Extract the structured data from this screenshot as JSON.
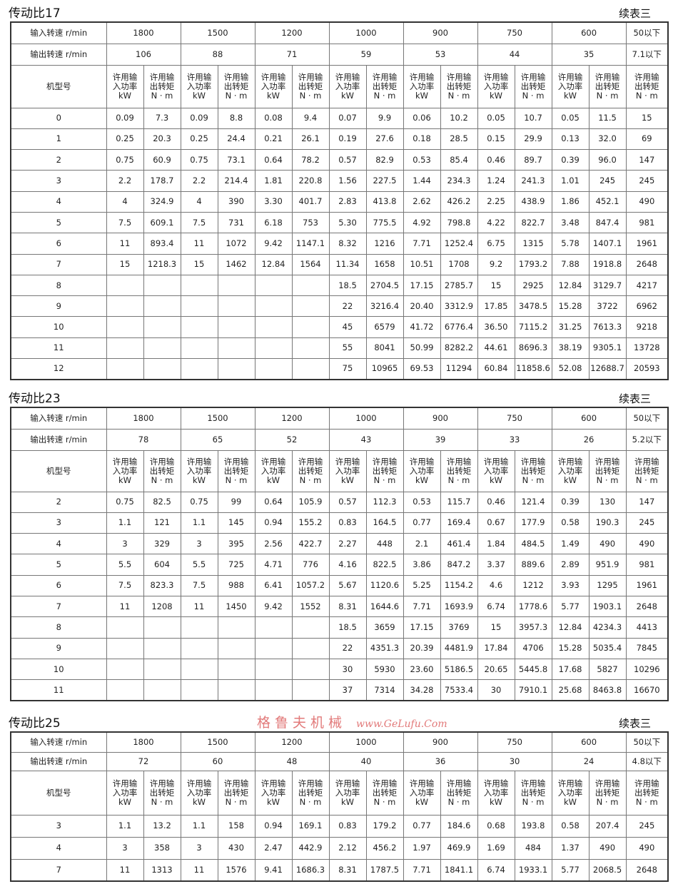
{
  "labels": {
    "input_speed": "输入转速 r/min",
    "output_speed": "输出转速 r/min",
    "model": "机型号",
    "power_header": [
      "许用输",
      "入功率",
      "kW"
    ],
    "torque_header": [
      "许用输",
      "出转矩",
      "N · m"
    ],
    "continued": "续表三"
  },
  "input_speeds": [
    "1800",
    "1500",
    "1200",
    "1000",
    "900",
    "750",
    "600",
    "50以下"
  ],
  "tables": [
    {
      "title": "传动比17",
      "output_speeds": [
        "106",
        "88",
        "71",
        "59",
        "53",
        "44",
        "35",
        "7.1以下"
      ],
      "rows": [
        [
          "0",
          "0.09",
          "7.3",
          "0.09",
          "8.8",
          "0.08",
          "9.4",
          "0.07",
          "9.9",
          "0.06",
          "10.2",
          "0.05",
          "10.7",
          "0.05",
          "11.5",
          "15"
        ],
        [
          "1",
          "0.25",
          "20.3",
          "0.25",
          "24.4",
          "0.21",
          "26.1",
          "0.19",
          "27.6",
          "0.18",
          "28.5",
          "0.15",
          "29.9",
          "0.13",
          "32.0",
          "69"
        ],
        [
          "2",
          "0.75",
          "60.9",
          "0.75",
          "73.1",
          "0.64",
          "78.2",
          "0.57",
          "82.9",
          "0.53",
          "85.4",
          "0.46",
          "89.7",
          "0.39",
          "96.0",
          "147"
        ],
        [
          "3",
          "2.2",
          "178.7",
          "2.2",
          "214.4",
          "1.81",
          "220.8",
          "1.56",
          "227.5",
          "1.44",
          "234.3",
          "1.24",
          "241.3",
          "1.01",
          "245",
          "245"
        ],
        [
          "4",
          "4",
          "324.9",
          "4",
          "390",
          "3.30",
          "401.7",
          "2.83",
          "413.8",
          "2.62",
          "426.2",
          "2.25",
          "438.9",
          "1.86",
          "452.1",
          "490"
        ],
        [
          "5",
          "7.5",
          "609.1",
          "7.5",
          "731",
          "6.18",
          "753",
          "5.30",
          "775.5",
          "4.92",
          "798.8",
          "4.22",
          "822.7",
          "3.48",
          "847.4",
          "981"
        ],
        [
          "6",
          "11",
          "893.4",
          "11",
          "1072",
          "9.42",
          "1147.1",
          "8.32",
          "1216",
          "7.71",
          "1252.4",
          "6.75",
          "1315",
          "5.78",
          "1407.1",
          "1961"
        ],
        [
          "7",
          "15",
          "1218.3",
          "15",
          "1462",
          "12.84",
          "1564",
          "11.34",
          "1658",
          "10.51",
          "1708",
          "9.2",
          "1793.2",
          "7.88",
          "1918.8",
          "2648"
        ],
        [
          "8",
          "",
          "",
          "",
          "",
          "",
          "",
          "18.5",
          "2704.5",
          "17.15",
          "2785.7",
          "15",
          "2925",
          "12.84",
          "3129.7",
          "4217"
        ],
        [
          "9",
          "",
          "",
          "",
          "",
          "",
          "",
          "22",
          "3216.4",
          "20.40",
          "3312.9",
          "17.85",
          "3478.5",
          "15.28",
          "3722",
          "6962"
        ],
        [
          "10",
          "",
          "",
          "",
          "",
          "",
          "",
          "45",
          "6579",
          "41.72",
          "6776.4",
          "36.50",
          "7115.2",
          "31.25",
          "7613.3",
          "9218"
        ],
        [
          "11",
          "",
          "",
          "",
          "",
          "",
          "",
          "55",
          "8041",
          "50.99",
          "8282.2",
          "44.61",
          "8696.3",
          "38.19",
          "9305.1",
          "13728"
        ],
        [
          "12",
          "",
          "",
          "",
          "",
          "",
          "",
          "75",
          "10965",
          "69.53",
          "11294",
          "60.84",
          "11858.6",
          "52.08",
          "12688.7",
          "20593"
        ]
      ]
    },
    {
      "title": "传动比23",
      "output_speeds": [
        "78",
        "65",
        "52",
        "43",
        "39",
        "33",
        "26",
        "5.2以下"
      ],
      "rows": [
        [
          "2",
          "0.75",
          "82.5",
          "0.75",
          "99",
          "0.64",
          "105.9",
          "0.57",
          "112.3",
          "0.53",
          "115.7",
          "0.46",
          "121.4",
          "0.39",
          "130",
          "147"
        ],
        [
          "3",
          "1.1",
          "121",
          "1.1",
          "145",
          "0.94",
          "155.2",
          "0.83",
          "164.5",
          "0.77",
          "169.4",
          "0.67",
          "177.9",
          "0.58",
          "190.3",
          "245"
        ],
        [
          "4",
          "3",
          "329",
          "3",
          "395",
          "2.56",
          "422.7",
          "2.27",
          "448",
          "2.1",
          "461.4",
          "1.84",
          "484.5",
          "1.49",
          "490",
          "490"
        ],
        [
          "5",
          "5.5",
          "604",
          "5.5",
          "725",
          "4.71",
          "776",
          "4.16",
          "822.5",
          "3.86",
          "847.2",
          "3.37",
          "889.6",
          "2.89",
          "951.9",
          "981"
        ],
        [
          "6",
          "7.5",
          "823.3",
          "7.5",
          "988",
          "6.41",
          "1057.2",
          "5.67",
          "1120.6",
          "5.25",
          "1154.2",
          "4.6",
          "1212",
          "3.93",
          "1295",
          "1961"
        ],
        [
          "7",
          "11",
          "1208",
          "11",
          "1450",
          "9.42",
          "1552",
          "8.31",
          "1644.6",
          "7.71",
          "1693.9",
          "6.74",
          "1778.6",
          "5.77",
          "1903.1",
          "2648"
        ],
        [
          "8",
          "",
          "",
          "",
          "",
          "",
          "",
          "18.5",
          "3659",
          "17.15",
          "3769",
          "15",
          "3957.3",
          "12.84",
          "4234.3",
          "4413"
        ],
        [
          "9",
          "",
          "",
          "",
          "",
          "",
          "",
          "22",
          "4351.3",
          "20.39",
          "4481.9",
          "17.84",
          "4706",
          "15.28",
          "5035.4",
          "7845"
        ],
        [
          "10",
          "",
          "",
          "",
          "",
          "",
          "",
          "30",
          "5930",
          "23.60",
          "5186.5",
          "20.65",
          "5445.8",
          "17.68",
          "5827",
          "10296"
        ],
        [
          "11",
          "",
          "",
          "",
          "",
          "",
          "",
          "37",
          "7314",
          "34.28",
          "7533.4",
          "30",
          "7910.1",
          "25.68",
          "8463.8",
          "16670"
        ]
      ]
    },
    {
      "title": "传动比25",
      "output_speeds": [
        "72",
        "60",
        "48",
        "40",
        "36",
        "30",
        "24",
        "4.8以下"
      ],
      "rows": [
        [
          "3",
          "1.1",
          "13.2",
          "1.1",
          "158",
          "0.94",
          "169.1",
          "0.83",
          "179.2",
          "0.77",
          "184.6",
          "0.68",
          "193.8",
          "0.58",
          "207.4",
          "245"
        ],
        [
          "4",
          "3",
          "358",
          "3",
          "430",
          "2.47",
          "442.9",
          "2.12",
          "456.2",
          "1.97",
          "469.9",
          "1.69",
          "484",
          "1.37",
          "490",
          "490"
        ],
        [
          "7",
          "11",
          "1313",
          "11",
          "1576",
          "9.41",
          "1686.3",
          "8.31",
          "1787.5",
          "7.71",
          "1841.1",
          "6.74",
          "1933.1",
          "5.77",
          "2068.5",
          "2648"
        ]
      ]
    }
  ],
  "watermark": {
    "cn": "格鲁夫机械",
    "en": "www.GeLufu.Com",
    "color": "#e27a7a"
  }
}
